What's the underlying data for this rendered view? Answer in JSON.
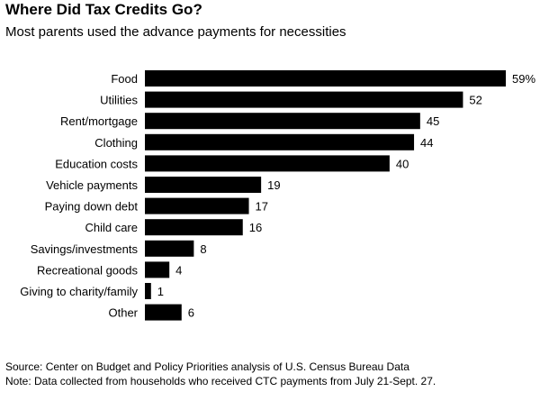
{
  "chart_data": {
    "type": "bar",
    "orientation": "horizontal",
    "title": "Where Did Tax Credits Go?",
    "subtitle": "Most parents used the advance payments for necessities",
    "categories": [
      "Food",
      "Utilities",
      "Rent/mortgage",
      "Clothing",
      "Education costs",
      "Vehicle payments",
      "Paying down debt",
      "Child care",
      "Savings/investments",
      "Recreational goods",
      "Giving to charity/family",
      "Other"
    ],
    "values": [
      59,
      52,
      45,
      44,
      40,
      19,
      17,
      16,
      8,
      4,
      1,
      6
    ],
    "value_labels": [
      "59%",
      "52",
      "45",
      "44",
      "40",
      "19",
      "17",
      "16",
      "8",
      "4",
      "1",
      "6"
    ],
    "xlim": [
      0,
      59
    ],
    "grid": false,
    "bar_color": "#000000"
  },
  "footer": {
    "source": "Source: Center on Budget and Policy Priorities analysis of U.S. Census Bureau Data",
    "note": "Note: Data collected from households who received CTC payments from July 21-Sept. 27."
  }
}
